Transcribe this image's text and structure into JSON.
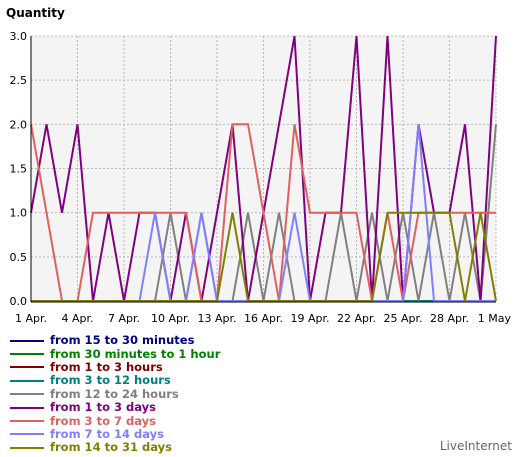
{
  "chart_data": {
    "type": "line",
    "ylabel": "Quantity",
    "ylim": [
      0,
      3
    ],
    "yticks": [
      "0.0",
      "0.5",
      "1.0",
      "1.5",
      "2.0",
      "2.5",
      "3.0"
    ],
    "x_labels": [
      "1 Apr.",
      "4 Apr.",
      "7 Apr.",
      "10 Apr.",
      "13 Apr.",
      "16 Apr.",
      "19 Apr.",
      "22 Apr.",
      "25 Apr.",
      "28 Apr.",
      "1 May"
    ],
    "grid": true,
    "series": [
      {
        "name": "from 15 to 30 minutes",
        "color": "#000080",
        "values": [
          0,
          0,
          0,
          0,
          0,
          0,
          0,
          0,
          0,
          0,
          0,
          0,
          0,
          0,
          0,
          0,
          0,
          0,
          0,
          0,
          0,
          0,
          0,
          0,
          0,
          0,
          0,
          0,
          0,
          0,
          0
        ]
      },
      {
        "name": "from 30 minutes to 1 hour",
        "color": "#008000",
        "values": [
          0,
          0,
          0,
          0,
          0,
          0,
          0,
          0,
          0,
          0,
          0,
          0,
          0,
          0,
          0,
          0,
          0,
          0,
          0,
          0,
          0,
          0,
          0,
          0,
          0,
          0,
          0,
          0,
          0,
          0,
          0
        ]
      },
      {
        "name": "from 1 to 3 hours",
        "color": "#800000",
        "values": [
          0,
          0,
          0,
          0,
          0,
          0,
          0,
          0,
          0,
          0,
          0,
          0,
          0,
          0,
          0,
          0,
          0,
          0,
          0,
          0,
          0,
          0,
          0,
          0,
          0,
          0,
          0,
          0,
          0,
          0,
          0
        ]
      },
      {
        "name": "from 3 to 12 hours",
        "color": "#008080",
        "values": [
          0,
          0,
          0,
          0,
          0,
          0,
          0,
          0,
          0,
          0,
          0,
          0,
          0,
          0,
          0,
          0,
          0,
          0,
          0,
          0,
          0,
          0,
          0,
          0,
          0,
          0,
          0,
          0,
          0,
          0,
          0
        ]
      },
      {
        "name": "from 12 to 24 hours",
        "color": "#808080",
        "values": [
          0,
          0,
          0,
          0,
          0,
          0,
          0,
          0,
          0,
          1,
          0,
          1,
          0,
          0,
          1,
          0,
          1,
          0,
          0,
          0,
          1,
          0,
          1,
          0,
          1,
          0,
          1,
          0,
          1,
          0,
          2
        ]
      },
      {
        "name": "from 1 to 3 days",
        "color": "#800080",
        "values": [
          1,
          2,
          1,
          2,
          0,
          1,
          0,
          1,
          1,
          0,
          1,
          0,
          1,
          2,
          0,
          1,
          2,
          3,
          0,
          1,
          1,
          3,
          0,
          3,
          0,
          2,
          1,
          1,
          2,
          0,
          3
        ]
      },
      {
        "name": "from 3 to 7 days",
        "color": "#e06060",
        "values": [
          2,
          1,
          0,
          0,
          1,
          1,
          1,
          1,
          1,
          1,
          1,
          0,
          0,
          2,
          2,
          1,
          0,
          2,
          1,
          1,
          1,
          1,
          0,
          1,
          0,
          1,
          1,
          1,
          1,
          1,
          1
        ]
      },
      {
        "name": "from 7 to 14 days",
        "color": "#8080ff",
        "values": [
          0,
          0,
          0,
          0,
          0,
          0,
          0,
          0,
          1,
          0,
          0,
          1,
          0,
          0,
          0,
          0,
          0,
          1,
          0,
          0,
          0,
          0,
          0,
          0,
          0,
          2,
          0,
          0,
          0,
          0,
          0
        ]
      },
      {
        "name": "from 14 to 31 days",
        "color": "#808000",
        "values": [
          0,
          0,
          0,
          0,
          0,
          0,
          0,
          0,
          0,
          0,
          0,
          0,
          0,
          1,
          0,
          0,
          0,
          0,
          0,
          0,
          0,
          0,
          0,
          1,
          1,
          1,
          1,
          1,
          0,
          1,
          0
        ]
      }
    ]
  },
  "brand": "LiveInternet"
}
